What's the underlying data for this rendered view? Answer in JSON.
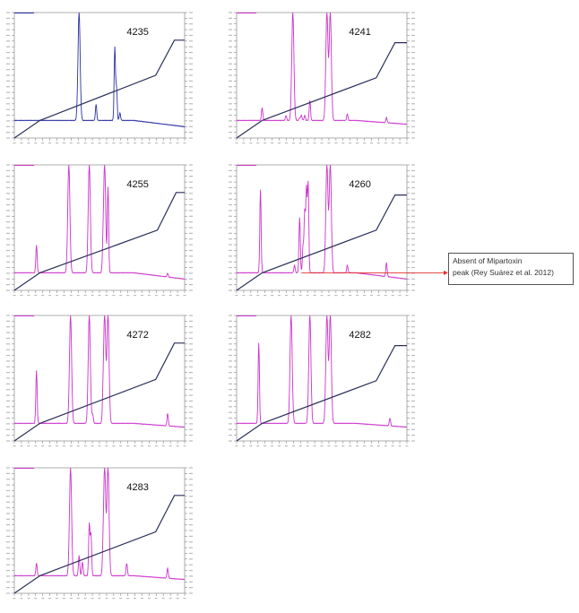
{
  "chart_data": [
    {
      "type": "line",
      "title": "4235",
      "trace_color": "#2b2fa0",
      "gradient_color": "#2a2f5a",
      "x_range": [
        0,
        100
      ],
      "y_range": [
        0,
        100
      ],
      "peaks": [
        [
          5,
          6
        ],
        [
          10,
          10
        ],
        [
          14,
          10
        ],
        [
          27,
          4
        ],
        [
          30,
          4
        ],
        [
          38,
          100
        ],
        [
          41,
          4
        ],
        [
          43,
          7
        ],
        [
          45,
          7
        ],
        [
          48,
          27
        ],
        [
          50,
          13
        ],
        [
          56,
          10
        ],
        [
          59,
          72
        ],
        [
          60,
          40
        ],
        [
          62,
          20
        ],
        [
          63,
          14
        ],
        [
          66,
          2
        ],
        [
          72,
          3
        ],
        [
          80,
          2
        ],
        [
          87,
          2
        ],
        [
          95,
          10
        ]
      ],
      "baseline": 14,
      "baseline_end": 9,
      "gradient": [
        [
          0,
          0
        ],
        [
          15,
          14
        ],
        [
          83,
          50
        ],
        [
          94,
          78
        ],
        [
          100,
          78
        ]
      ]
    },
    {
      "type": "line",
      "title": "4241",
      "trace_color": "#cc33cc",
      "gradient_color": "#2a2f5a",
      "x_range": [
        0,
        100
      ],
      "y_range": [
        0,
        100
      ],
      "peaks": [
        [
          15,
          24
        ],
        [
          29,
          18
        ],
        [
          33,
          100
        ],
        [
          37,
          16
        ],
        [
          38,
          18
        ],
        [
          40,
          18
        ],
        [
          41,
          12
        ],
        [
          43,
          30
        ],
        [
          53,
          100
        ],
        [
          55,
          100
        ],
        [
          58,
          6
        ],
        [
          65,
          19
        ],
        [
          80,
          2
        ],
        [
          88,
          18
        ]
      ],
      "baseline": 14,
      "baseline_end": 11,
      "gradient": [
        [
          0,
          0
        ],
        [
          15,
          14
        ],
        [
          82,
          48
        ],
        [
          93,
          76
        ],
        [
          100,
          76
        ]
      ]
    },
    {
      "type": "line",
      "title": "4255",
      "trace_color": "#cc33cc",
      "gradient_color": "#2a2f5a",
      "x_range": [
        0,
        100
      ],
      "y_range": [
        0,
        100
      ],
      "peaks": [
        [
          13,
          36
        ],
        [
          29,
          7
        ],
        [
          32,
          100
        ],
        [
          38,
          10
        ],
        [
          39,
          13
        ],
        [
          41,
          14
        ],
        [
          42,
          8
        ],
        [
          44,
          100
        ],
        [
          52,
          22
        ],
        [
          53,
          100
        ],
        [
          55,
          82
        ],
        [
          66,
          7
        ],
        [
          81,
          2
        ],
        [
          90,
          17
        ]
      ],
      "baseline": 14,
      "baseline_end": 9,
      "gradient": [
        [
          0,
          0
        ],
        [
          15,
          14
        ],
        [
          84,
          48
        ],
        [
          95,
          78
        ],
        [
          100,
          78
        ]
      ]
    },
    {
      "type": "line",
      "title": "4260",
      "trace_color": "#cc33cc",
      "gradient_color": "#2a2f5a",
      "x_range": [
        0,
        100
      ],
      "y_range": [
        0,
        100
      ],
      "peaks": [
        [
          14,
          80
        ],
        [
          25,
          3
        ],
        [
          29,
          10
        ],
        [
          34,
          20
        ],
        [
          37,
          58
        ],
        [
          39,
          35
        ],
        [
          40,
          62
        ],
        [
          41,
          80
        ],
        [
          42,
          85
        ],
        [
          44,
          12
        ],
        [
          53,
          100
        ],
        [
          55,
          100
        ],
        [
          65,
          20
        ],
        [
          80,
          2
        ],
        [
          88,
          25
        ]
      ],
      "baseline": 14,
      "baseline_end": 9,
      "gradient": [
        [
          0,
          0
        ],
        [
          15,
          14
        ],
        [
          82,
          48
        ],
        [
          93,
          76
        ],
        [
          100,
          76
        ]
      ],
      "annotation_arrow_y": 14
    },
    {
      "type": "line",
      "title": "4272",
      "trace_color": "#cc33cc",
      "gradient_color": "#2a2f5a",
      "x_range": [
        0,
        100
      ],
      "y_range": [
        0,
        100
      ],
      "peaks": [
        [
          13,
          56
        ],
        [
          27,
          6
        ],
        [
          29,
          8
        ],
        [
          33,
          100
        ],
        [
          38,
          8
        ],
        [
          39,
          12
        ],
        [
          41,
          13
        ],
        [
          42,
          10
        ],
        [
          44,
          100
        ],
        [
          46,
          21
        ],
        [
          52,
          22
        ],
        [
          53,
          100
        ],
        [
          55,
          100
        ],
        [
          66,
          12
        ],
        [
          81,
          2
        ],
        [
          90,
          24
        ]
      ],
      "baseline": 14,
      "baseline_end": 11,
      "gradient": [
        [
          0,
          0
        ],
        [
          15,
          14
        ],
        [
          83,
          49
        ],
        [
          94,
          78
        ],
        [
          100,
          78
        ]
      ]
    },
    {
      "type": "line",
      "title": "4282",
      "trace_color": "#cc33cc",
      "gradient_color": "#2a2f5a",
      "x_range": [
        0,
        100
      ],
      "y_range": [
        0,
        100
      ],
      "peaks": [
        [
          13,
          78
        ],
        [
          27,
          8
        ],
        [
          32,
          100
        ],
        [
          36,
          8
        ],
        [
          38,
          12
        ],
        [
          39,
          10
        ],
        [
          41,
          14
        ],
        [
          43,
          100
        ],
        [
          53,
          100
        ],
        [
          55,
          100
        ],
        [
          65,
          9
        ],
        [
          81,
          2
        ],
        [
          90,
          20
        ]
      ],
      "baseline": 14,
      "baseline_end": 11,
      "gradient": [
        [
          0,
          0
        ],
        [
          15,
          14
        ],
        [
          82,
          48
        ],
        [
          93,
          76
        ],
        [
          100,
          76
        ]
      ]
    },
    {
      "type": "line",
      "title": "4283",
      "trace_color": "#cc33cc",
      "gradient_color": "#2a2f5a",
      "x_range": [
        0,
        100
      ],
      "y_range": [
        0,
        100
      ],
      "peaks": [
        [
          13,
          24
        ],
        [
          27,
          5
        ],
        [
          30,
          12
        ],
        [
          33,
          100
        ],
        [
          37,
          10
        ],
        [
          38,
          30
        ],
        [
          40,
          25
        ],
        [
          41,
          10
        ],
        [
          42,
          12
        ],
        [
          44,
          55
        ],
        [
          45,
          47
        ],
        [
          52,
          20
        ],
        [
          53,
          100
        ],
        [
          55,
          100
        ],
        [
          66,
          24
        ],
        [
          67,
          6
        ],
        [
          81,
          2
        ],
        [
          90,
          22
        ]
      ],
      "baseline": 14,
      "baseline_end": 11,
      "gradient": [
        [
          0,
          0
        ],
        [
          15,
          14
        ],
        [
          83,
          49
        ],
        [
          94,
          78
        ],
        [
          100,
          78
        ]
      ]
    }
  ],
  "annotation": {
    "line1": "Absent of Mipartoxin",
    "line2": "peak (Rey Suárez et al. 2012)",
    "arrow_color": "#e0302a"
  }
}
